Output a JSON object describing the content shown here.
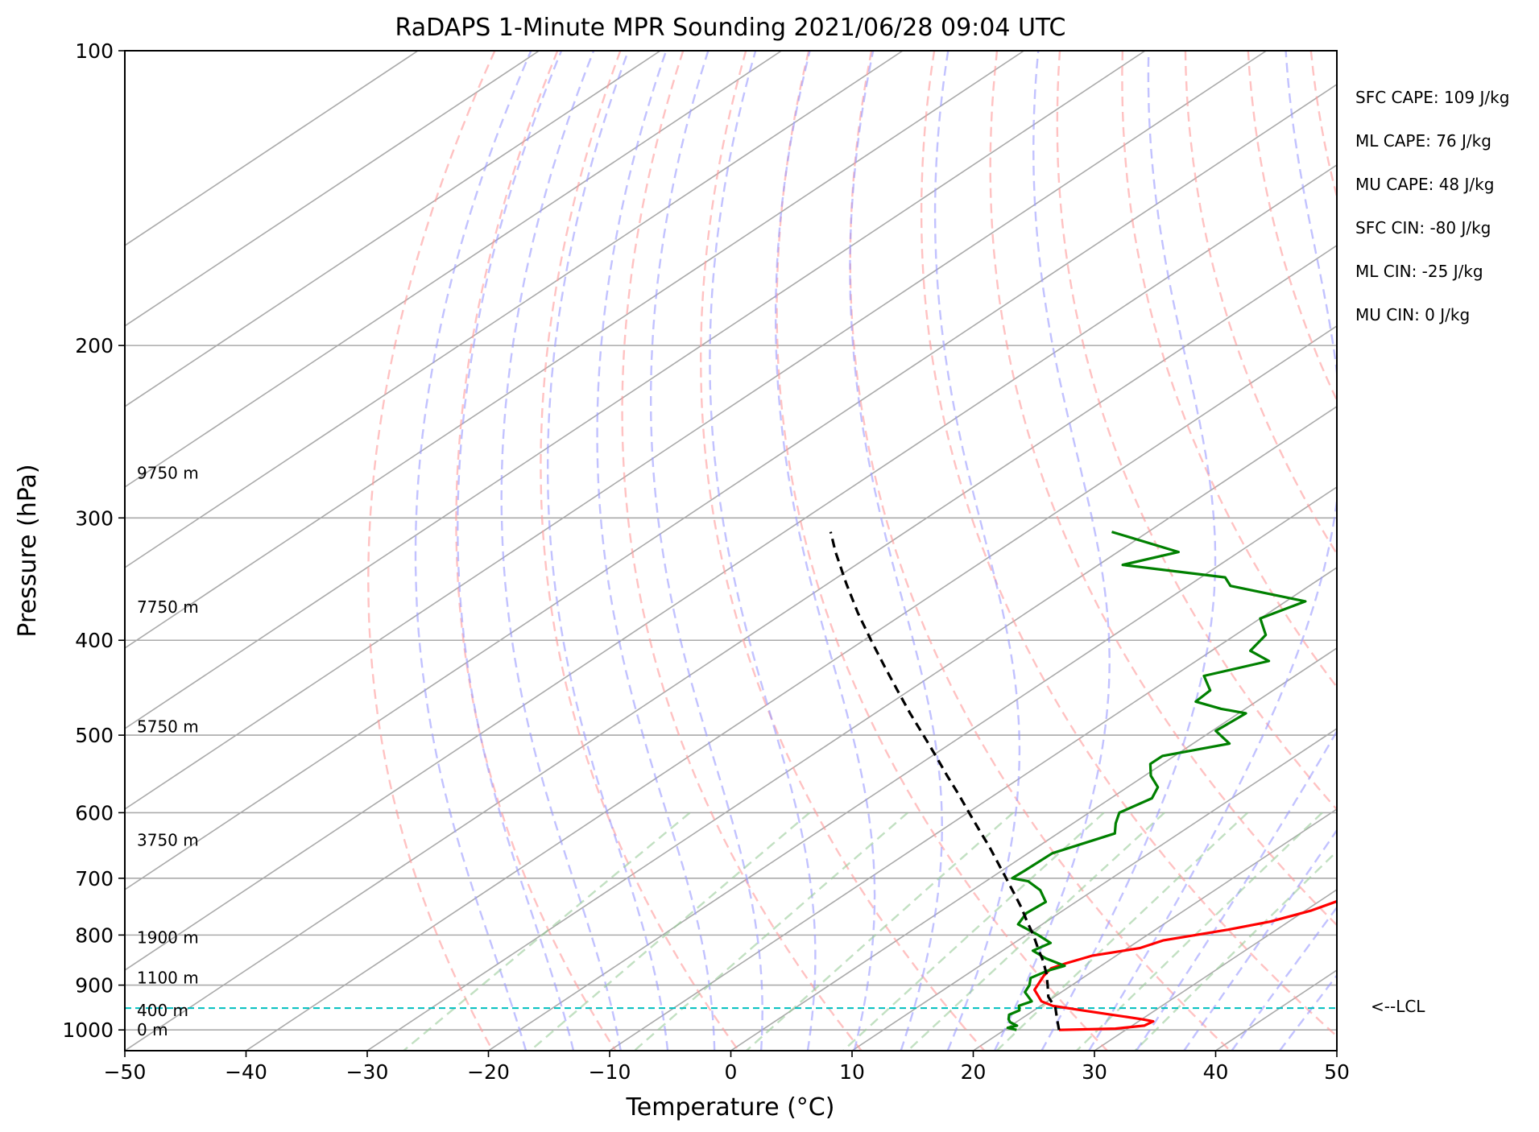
{
  "chart_data": {
    "type": "line",
    "title": "RaDAPS 1-Minute MPR Sounding 2021/06/28 09:04 UTC",
    "xlabel": "Temperature (°C)",
    "ylabel": "Pressure (hPa)",
    "xlim": [
      -50,
      50
    ],
    "ylim": [
      1050,
      100
    ],
    "y_scale": "log",
    "x_ticks": [
      "−50",
      "−40",
      "−30",
      "−20",
      "−10",
      "0",
      "10",
      "20",
      "30",
      "40",
      "50"
    ],
    "y_ticks": [
      "100",
      "200",
      "300",
      "400",
      "500",
      "600",
      "700",
      "800",
      "900",
      "1000"
    ],
    "skew": true,
    "grid": true,
    "colors": {
      "temperature": "#ff0000",
      "dewpoint": "#008000",
      "parcel": "#000000",
      "lcl": "#00bfbf",
      "dry_adiabats": "#ff9999",
      "moist_adiabats": "#9999ff",
      "mixing_ratio": "#99cc99",
      "isotherms": "#aaaaaa"
    },
    "series": [
      {
        "key": "temperature",
        "points": [
          [
            1000,
            24.5
          ],
          [
            997,
            29
          ],
          [
            990,
            31
          ],
          [
            980,
            31.2
          ],
          [
            975,
            30
          ],
          [
            965,
            27
          ],
          [
            955,
            24
          ],
          [
            945,
            21
          ],
          [
            935,
            19.5
          ],
          [
            910,
            17.5
          ],
          [
            880,
            16.5
          ],
          [
            865,
            16.2
          ],
          [
            855,
            16.8
          ],
          [
            840,
            18
          ],
          [
            825,
            21
          ],
          [
            810,
            22
          ],
          [
            790,
            26
          ],
          [
            775,
            28.5
          ],
          [
            755,
            30.5
          ],
          [
            730,
            32
          ],
          [
            715,
            32.6
          ],
          [
            700,
            32.5
          ],
          [
            680,
            32.9
          ],
          [
            660,
            33.8
          ],
          [
            640,
            36
          ],
          [
            620,
            37.5
          ],
          [
            600,
            38.8
          ],
          [
            580,
            38
          ],
          [
            560,
            39
          ],
          [
            540,
            40.5
          ],
          [
            525,
            41
          ],
          [
            505,
            40
          ],
          [
            490,
            38.5
          ],
          [
            470,
            36.5
          ],
          [
            450,
            36
          ],
          [
            435,
            35.5
          ],
          [
            415,
            35.5
          ],
          [
            400,
            35.8
          ],
          [
            385,
            34
          ],
          [
            375,
            32.2
          ],
          [
            360,
            31.5
          ],
          [
            350,
            30.8
          ],
          [
            340,
            30.6
          ],
          [
            330,
            29.6
          ],
          [
            318,
            29.2
          ],
          [
            310,
            29
          ]
        ]
      },
      {
        "key": "dewpoint",
        "points": [
          [
            1000,
            21
          ],
          [
            995,
            20
          ],
          [
            990,
            20.5
          ],
          [
            982,
            19.5
          ],
          [
            975,
            19
          ],
          [
            965,
            18.5
          ],
          [
            955,
            18.8
          ],
          [
            945,
            18.2
          ],
          [
            935,
            18.7
          ],
          [
            915,
            17
          ],
          [
            900,
            16.5
          ],
          [
            885,
            15.7
          ],
          [
            870,
            16.2
          ],
          [
            860,
            17
          ],
          [
            845,
            14.5
          ],
          [
            830,
            12.5
          ],
          [
            815,
            13
          ],
          [
            800,
            11
          ],
          [
            780,
            8
          ],
          [
            760,
            7.3
          ],
          [
            740,
            7.5
          ],
          [
            720,
            5.6
          ],
          [
            705,
            3.5
          ],
          [
            700,
            1.8
          ],
          [
            685,
            1.9
          ],
          [
            660,
            2
          ],
          [
            630,
            4.7
          ],
          [
            615,
            3.5
          ],
          [
            600,
            2.5
          ],
          [
            580,
            3.4
          ],
          [
            565,
            2.5
          ],
          [
            550,
            0.5
          ],
          [
            535,
            -1
          ],
          [
            525,
            -1
          ],
          [
            510,
            3
          ],
          [
            495,
            0.3
          ],
          [
            475,
            0.6
          ],
          [
            470,
            -2
          ],
          [
            462,
            -5
          ],
          [
            450,
            -5.2
          ],
          [
            435,
            -7.5
          ],
          [
            420,
            -4
          ],
          [
            410,
            -6.8
          ],
          [
            395,
            -7.5
          ],
          [
            380,
            -10
          ],
          [
            365,
            -8.4
          ],
          [
            352,
            -16.5
          ],
          [
            345,
            -18
          ],
          [
            335,
            -28
          ],
          [
            325,
            -25
          ],
          [
            310,
            -33
          ]
        ]
      },
      {
        "key": "parcel",
        "points": [
          [
            1000,
            24.5
          ],
          [
            975,
            23
          ],
          [
            950,
            21.5
          ],
          [
            925,
            19.5
          ],
          [
            900,
            18
          ],
          [
            875,
            16.4
          ],
          [
            850,
            14.6
          ],
          [
            825,
            12.6
          ],
          [
            800,
            10.6
          ],
          [
            775,
            8.4
          ],
          [
            750,
            6.2
          ],
          [
            725,
            3.8
          ],
          [
            700,
            1.3
          ],
          [
            675,
            -1.3
          ],
          [
            650,
            -4
          ],
          [
            625,
            -6.9
          ],
          [
            600,
            -9.9
          ],
          [
            575,
            -13
          ],
          [
            550,
            -16.3
          ],
          [
            525,
            -19.7
          ],
          [
            500,
            -23.3
          ],
          [
            475,
            -27.1
          ],
          [
            450,
            -31
          ],
          [
            425,
            -35.1
          ],
          [
            400,
            -39.4
          ],
          [
            375,
            -43.9
          ],
          [
            350,
            -48.5
          ],
          [
            325,
            -53.3
          ],
          [
            310,
            -56.2
          ]
        ]
      }
    ],
    "lcl_pressure": 950,
    "lcl_label": "<--LCL",
    "height_labels": [
      {
        "p": 1000,
        "text": "0 m"
      },
      {
        "p": 955,
        "text": "400 m"
      },
      {
        "p": 885,
        "text": "1100 m"
      },
      {
        "p": 805,
        "text": "1900 m"
      },
      {
        "p": 640,
        "text": "3750 m"
      },
      {
        "p": 490,
        "text": "5750 m"
      },
      {
        "p": 370,
        "text": "7750 m"
      },
      {
        "p": 270,
        "text": "9750 m"
      }
    ],
    "stats": [
      "SFC CAPE: 109 J/kg",
      "ML CAPE: 76 J/kg",
      "MU CAPE: 48 J/kg",
      "SFC CIN: -80 J/kg",
      "ML CIN: -25 J/kg",
      "MU CIN: 0 J/kg"
    ]
  }
}
